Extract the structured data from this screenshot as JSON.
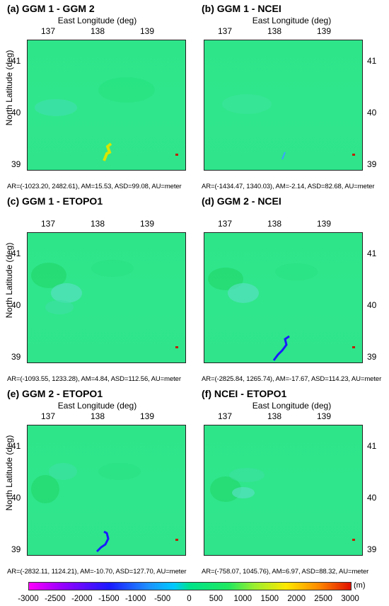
{
  "x_axis_label": "East Longitude (deg)",
  "y_axis_label": "North Latitude (deg)",
  "x_ticks": [
    "137",
    "138",
    "139"
  ],
  "y_ticks": [
    "41",
    "40",
    "39"
  ],
  "panels": [
    {
      "title": "(a) GGM 1 - GGM 2",
      "stats": "AR=(-1023.20, 2482.61), AM=15.53, ASD=99.08, AU=meter",
      "y_axis_side": "left"
    },
    {
      "title": "(b) GGM 1 - NCEI",
      "stats": "AR=(-1434.47, 1340.03), AM=-2.14, ASD=82.68, AU=meter",
      "y_axis_side": "right"
    },
    {
      "title": "(c) GGM 1 - ETOPO1",
      "stats": "AR=(-1093.55, 1233.28), AM=4.84, ASD=112.56, AU=meter",
      "y_axis_side": "left"
    },
    {
      "title": "(d) GGM 2 - NCEI",
      "stats": "AR=(-2825.84, 1265.74), AM=-17.67, ASD=114.23, AU=meter",
      "y_axis_side": "right"
    },
    {
      "title": "(e) GGM 2 - ETOPO1",
      "stats": "AR=(-2832.11, 1124.21), AM=-10.70, ASD=127.70, AU=meter",
      "y_axis_side": "left"
    },
    {
      "title": "(f) NCEI - ETOPO1",
      "stats": "AR=(-758.07, 1045.76), AM=6.97, ASD=88.32, AU=meter",
      "y_axis_side": "right"
    }
  ],
  "colorbar": {
    "ticks": [
      "-3000",
      "-2500",
      "-2000",
      "-1500",
      "-1000",
      "-500",
      "0",
      "500",
      "1000",
      "1500",
      "2000",
      "2500",
      "3000"
    ],
    "unit": "(m)",
    "range": [
      -3000,
      3000
    ],
    "colors": [
      "#ff00ff",
      "#1a1aff",
      "#00c8ff",
      "#00e38a",
      "#9aee30",
      "#ffe800",
      "#e01000"
    ]
  }
}
